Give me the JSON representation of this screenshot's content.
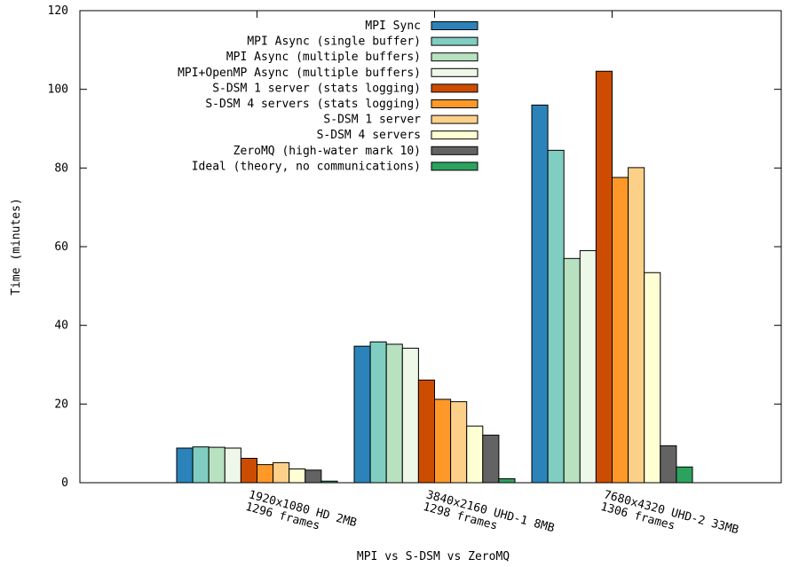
{
  "chart_data": {
    "type": "bar",
    "title": "",
    "xlabel": "MPI vs S-DSM vs ZeroMQ",
    "ylabel": "Time (minutes)",
    "ylim": [
      0,
      120
    ],
    "yticks": [
      0,
      20,
      40,
      60,
      80,
      100,
      120
    ],
    "grid": false,
    "legend_position": "top-right",
    "categories": [
      [
        "1920x1080 HD 2MB",
        "1296 frames"
      ],
      [
        "3840x2160 UHD-1 8MB",
        "1298 frames"
      ],
      [
        "7680x4320 UHD-2 33MB",
        "1306 frames"
      ]
    ],
    "series": [
      {
        "name": "MPI Sync",
        "color": "#2b83ba",
        "values": [
          8.8,
          34.7,
          96.0
        ]
      },
      {
        "name": "MPI Async (single buffer)",
        "color": "#80cdc1",
        "values": [
          9.1,
          35.8,
          84.5
        ]
      },
      {
        "name": "MPI Async (multiple buffers)",
        "color": "#b8e2bf",
        "values": [
          9.0,
          35.2,
          57.0
        ]
      },
      {
        "name": "MPI+OpenMP Async (multiple buffers)",
        "color": "#edf8e9",
        "values": [
          8.8,
          34.2,
          59.0
        ]
      },
      {
        "name": "S-DSM 1 server (stats logging)",
        "color": "#cc4c02",
        "values": [
          6.2,
          26.1,
          104.6
        ]
      },
      {
        "name": "S-DSM 4 servers (stats logging)",
        "color": "#fe9929",
        "values": [
          4.6,
          21.2,
          77.6
        ]
      },
      {
        "name": "S-DSM 1 server",
        "color": "#fdd08a",
        "values": [
          5.1,
          20.6,
          80.1
        ]
      },
      {
        "name": "S-DSM 4 servers",
        "color": "#ffffd4",
        "values": [
          3.5,
          14.4,
          53.4
        ]
      },
      {
        "name": "ZeroMQ (high-water mark 10)",
        "color": "#636363",
        "values": [
          3.2,
          12.1,
          9.4
        ]
      },
      {
        "name": "Ideal (theory, no communications)",
        "color": "#2ca25f",
        "values": [
          0.4,
          1.0,
          4.0
        ]
      }
    ]
  }
}
